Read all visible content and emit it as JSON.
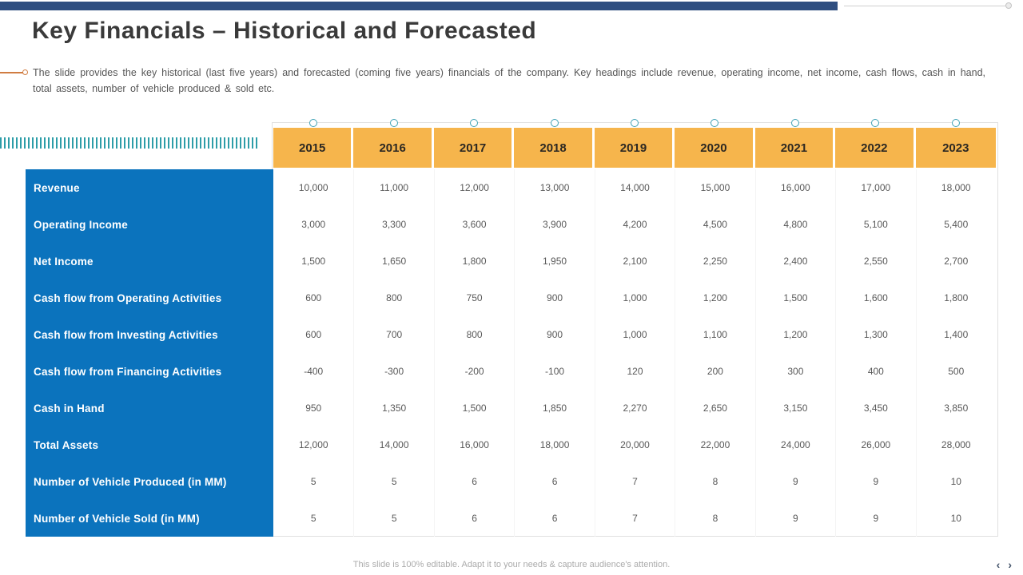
{
  "slide": {
    "title": "Key Financials – Historical and Forecasted",
    "description": "The slide provides the key historical (last five years) and forecasted (coming five years) financials of the company. Key headings include revenue, operating income, net income, cash flows, cash in hand, total assets, number of vehicle produced & sold etc.",
    "footer_note": "This slide is 100% editable. Adapt it to your needs & capture audience's attention.",
    "nav": {
      "prev": "‹",
      "next": "›"
    }
  },
  "chart_data": {
    "type": "table",
    "title": "Key Financials – Historical and Forecasted",
    "years": [
      "2015",
      "2016",
      "2017",
      "2018",
      "2019",
      "2020",
      "2021",
      "2022",
      "2023"
    ],
    "rows": [
      {
        "label": "Revenue",
        "values": [
          "10,000",
          "11,000",
          "12,000",
          "13,000",
          "14,000",
          "15,000",
          "16,000",
          "17,000",
          "18,000"
        ]
      },
      {
        "label": "Operating Income",
        "values": [
          "3,000",
          "3,300",
          "3,600",
          "3,900",
          "4,200",
          "4,500",
          "4,800",
          "5,100",
          "5,400"
        ]
      },
      {
        "label": "Net Income",
        "values": [
          "1,500",
          "1,650",
          "1,800",
          "1,950",
          "2,100",
          "2,250",
          "2,400",
          "2,550",
          "2,700"
        ]
      },
      {
        "label": "Cash flow from Operating Activities",
        "values": [
          "600",
          "800",
          "750",
          "900",
          "1,000",
          "1,200",
          "1,500",
          "1,600",
          "1,800"
        ]
      },
      {
        "label": "Cash flow from Investing Activities",
        "values": [
          "600",
          "700",
          "800",
          "900",
          "1,000",
          "1,100",
          "1,200",
          "1,300",
          "1,400"
        ]
      },
      {
        "label": "Cash flow from Financing Activities",
        "values": [
          "-400",
          "-300",
          "-200",
          "-100",
          "120",
          "200",
          "300",
          "400",
          "500"
        ]
      },
      {
        "label": "Cash in Hand",
        "values": [
          "950",
          "1,350",
          "1,500",
          "1,850",
          "2,270",
          "2,650",
          "3,150",
          "3,450",
          "3,850"
        ]
      },
      {
        "label": "Total Assets",
        "values": [
          "12,000",
          "14,000",
          "16,000",
          "18,000",
          "20,000",
          "22,000",
          "24,000",
          "26,000",
          "28,000"
        ]
      },
      {
        "label": "Number of Vehicle Produced (in MM)",
        "values": [
          "5",
          "5",
          "6",
          "6",
          "7",
          "8",
          "9",
          "9",
          "10"
        ]
      },
      {
        "label": "Number of Vehicle Sold (in MM)",
        "values": [
          "5",
          "5",
          "6",
          "6",
          "7",
          "8",
          "9",
          "9",
          "10"
        ]
      }
    ]
  },
  "colors": {
    "top_bar": "#2F4E80",
    "year_header": "#F6B54C",
    "label_panel": "#0B73BD",
    "timeline_circle": "#41A3B6",
    "stripe_teal": "#2D9DA8",
    "accent_orange": "#D07C41",
    "title_text": "#3A3A3A",
    "value_text": "#595959"
  }
}
